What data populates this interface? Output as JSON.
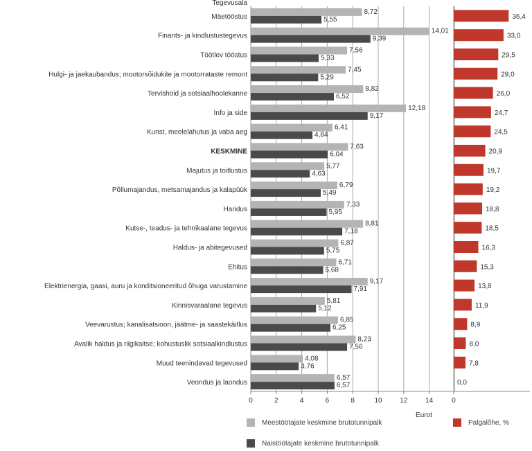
{
  "chart_data": [
    {
      "type": "bar",
      "orientation": "horizontal",
      "category_header": "Tegevusala",
      "categories": [
        "Mäetööstus",
        "Finants- ja kindlustustegevus",
        "Töötlev tööstus",
        "Hulgi- ja jaekaubandus; mootorsõidukite ja mootorrataste remont",
        "Tervishoid ja sotsiaalhoolekanne",
        "Info ja side",
        "Kunst, meelelahutus ja vaba aeg",
        "KESKMINE",
        "Majutus ja toitlustus",
        "Põllumajandus, metsamajandus ja kalapüük",
        "Haridus",
        "Kutse-, teadus- ja tehnikaalane tegevus",
        "Haldus- ja abitegevused",
        "Ehitus",
        "Elektrienergia, gaasi, auru ja konditsioneeritud õhuga varustamine",
        "Kinnisvaraalane tegevus",
        "Veevarustus; kanalisatsioon, jäätme- ja saastekäitlus",
        "Avalik haldus ja riigikaitse; kohustuslik sotsiaalkindlustus",
        "Muud teenindavad tegevused",
        "Veondus ja laondus"
      ],
      "bold_category": "KESKMINE",
      "series": [
        {
          "name": "Meestöötajate keskmine brutotunnipalk",
          "color": "#b4b4b4",
          "values": [
            8.72,
            14.01,
            7.56,
            7.45,
            8.82,
            12.18,
            6.41,
            7.63,
            5.77,
            6.79,
            7.33,
            8.81,
            6.87,
            6.71,
            9.17,
            5.81,
            6.85,
            8.23,
            4.08,
            6.57
          ],
          "labels": [
            "8,72",
            "14,01",
            "7,56",
            "7,45",
            "8,82",
            "12,18",
            "6,41",
            "7,63",
            "5,77",
            "6,79",
            "7,33",
            "8,81",
            "6,87",
            "6,71",
            "9,17",
            "5,81",
            "6,85",
            "8,23",
            "4,08",
            "6,57"
          ]
        },
        {
          "name": "Naistöötajate keskmine brutotunnipalk",
          "color": "#4a4a4a",
          "values": [
            5.55,
            9.39,
            5.33,
            5.29,
            6.52,
            9.17,
            4.84,
            6.04,
            4.63,
            5.49,
            5.95,
            7.18,
            5.75,
            5.68,
            7.91,
            5.12,
            6.25,
            7.56,
            3.76,
            6.57
          ],
          "labels": [
            "5,55",
            "9,39",
            "5,33",
            "5,29",
            "6,52",
            "9,17",
            "4,84",
            "6,04",
            "4,63",
            "5,49",
            "5,95",
            "7,18",
            "5,75",
            "5,68",
            "7,91",
            "5,12",
            "6,25",
            "7,56",
            "3,76",
            "6,57"
          ]
        }
      ],
      "xlim": [
        0,
        16
      ],
      "xticks": [
        "0",
        "2",
        "4",
        "6",
        "8",
        "10",
        "12",
        "14"
      ],
      "xlabel": "Eurot",
      "grid": true
    },
    {
      "type": "bar",
      "orientation": "horizontal",
      "series": [
        {
          "name": "Palgalõhe, %",
          "color": "#c0382b",
          "values": [
            36.4,
            33.0,
            29.5,
            29.0,
            26.0,
            24.7,
            24.5,
            20.9,
            19.7,
            19.2,
            18.8,
            18.5,
            16.3,
            15.3,
            13.8,
            11.9,
            8.9,
            8.0,
            7.8,
            0.0
          ],
          "labels": [
            "36,4",
            "33,0",
            "29,5",
            "29,0",
            "26,0",
            "24,7",
            "24,5",
            "20,9",
            "19,7",
            "19,2",
            "18,8",
            "18,5",
            "16,3",
            "15,3",
            "13,8",
            "11,9",
            "8,9",
            "8,0",
            "7,8",
            "0,0"
          ]
        }
      ],
      "xticks": [
        "0"
      ],
      "grid": false
    }
  ],
  "legend": [
    {
      "key": "male",
      "label": "Meestöötajate keskmine brutotunnipalk",
      "color": "#b4b4b4"
    },
    {
      "key": "female",
      "label": "Naistöötajate keskmine brutotunnipalk",
      "color": "#4a4a4a"
    },
    {
      "key": "gap",
      "label": "Palgalõhe, %",
      "color": "#c0382b"
    }
  ]
}
